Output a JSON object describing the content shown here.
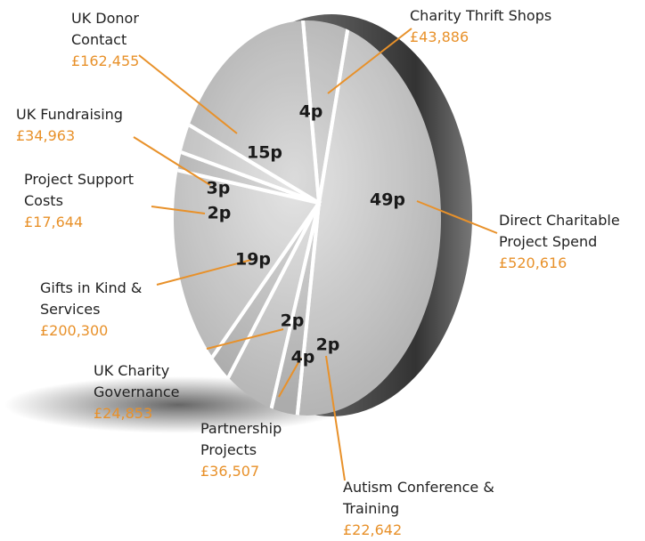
{
  "chart_data": {
    "type": "pie",
    "categories": [
      "Charity Thrift Shops",
      "Direct Charitable Project Spend",
      "Autism Conference & Training",
      "Partnership Projects",
      "UK Charity Governance",
      "Gifts in Kind & Services",
      "Project Support Costs",
      "UK Fundraising",
      "UK Donor Contact"
    ],
    "values": [
      4,
      49,
      2,
      4,
      2,
      19,
      2,
      3,
      15
    ],
    "value_labels": [
      "4p",
      "49p",
      "2p",
      "4p",
      "2p",
      "19p",
      "2p",
      "3p",
      "15p"
    ],
    "amounts": [
      "£43,886",
      "£520,616",
      "£22,642",
      "£36,507",
      "£24,853",
      "£200,300",
      "£17,644",
      "£34,963",
      "£162,455"
    ],
    "color": "#e8912a"
  }
}
